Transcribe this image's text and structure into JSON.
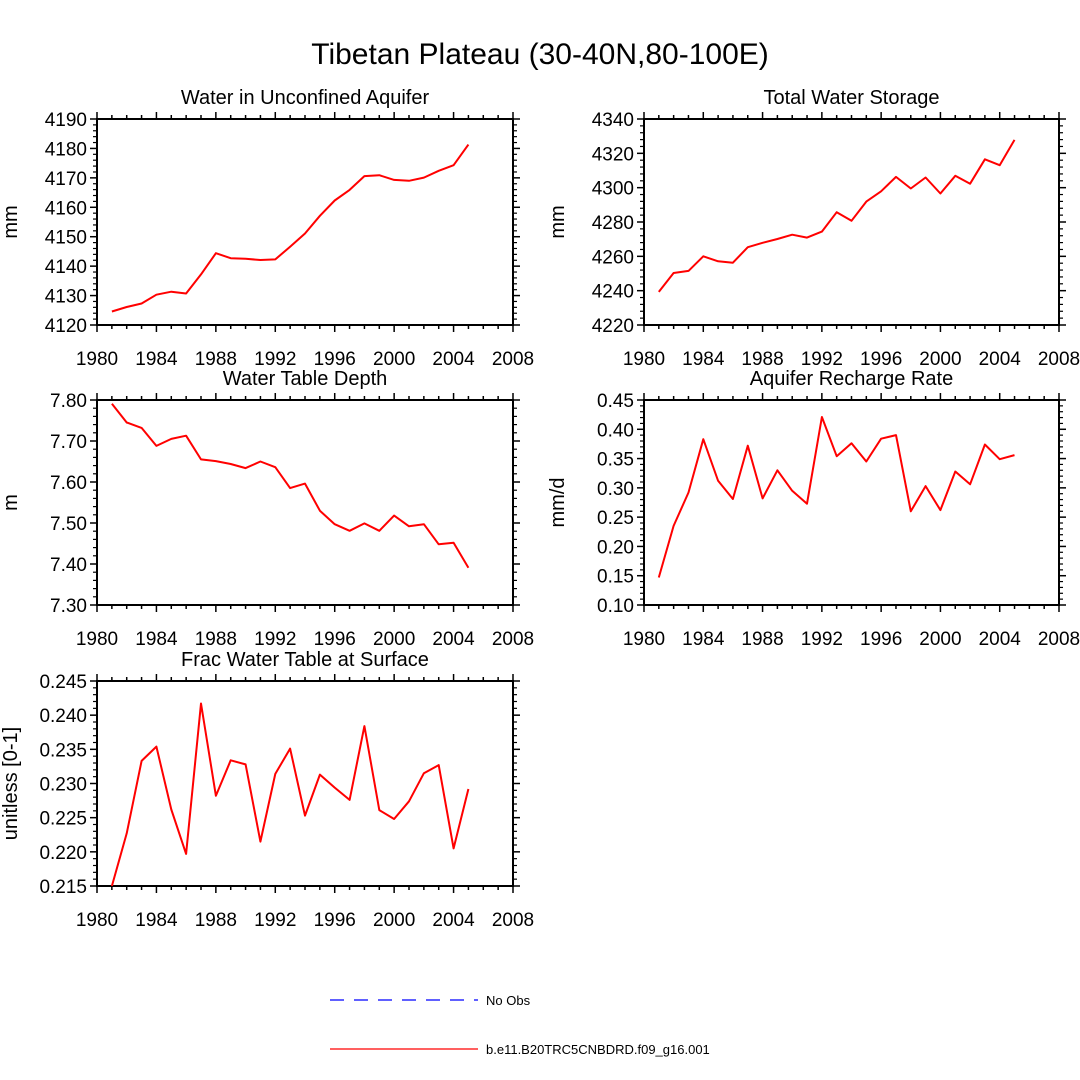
{
  "figure": {
    "title": "Tibetan Plateau (30-40N,80-100E)"
  },
  "legend": {
    "entries": [
      {
        "label": "No Obs",
        "color": "#0000ff",
        "style": "dashed"
      },
      {
        "label": "b.e11.B20TRC5CNBDRD.f09_g16.001",
        "color": "#ff0000",
        "style": "solid"
      }
    ]
  },
  "chart_data": [
    {
      "type": "line",
      "title": "Water in Unconfined Aquifer",
      "xlabel": "",
      "ylabel": "mm",
      "xlim": [
        1980,
        2008
      ],
      "ylim": [
        4120,
        4190
      ],
      "xticks": [
        1980,
        1984,
        1988,
        1992,
        1996,
        2000,
        2004,
        2008
      ],
      "yticks": [
        4120,
        4130,
        4140,
        4150,
        4160,
        4170,
        4180,
        4190
      ],
      "ytick_labels": [
        "4120",
        "4130",
        "4140",
        "4150",
        "4160",
        "4170",
        "4180",
        "4190"
      ],
      "x": [
        1981,
        1982,
        1983,
        1984,
        1985,
        1986,
        1987,
        1988,
        1989,
        1990,
        1991,
        1992,
        1993,
        1994,
        1995,
        1996,
        1997,
        1998,
        1999,
        2000,
        2001,
        2002,
        2003,
        2004,
        2005
      ],
      "series": [
        {
          "name": "b.e11.B20TRC5CNBDRD.f09_g16.001",
          "color": "#ff0000",
          "values": [
            4124.6,
            4126.1,
            4127.3,
            4130.3,
            4131.3,
            4130.7,
            4137.2,
            4144.4,
            4142.7,
            4142.5,
            4142.1,
            4142.3,
            4146.6,
            4151.1,
            4157.1,
            4162.3,
            4165.9,
            4170.6,
            4170.9,
            4169.3,
            4169.0,
            4170.1,
            4172.4,
            4174.3,
            4181.3
          ]
        }
      ]
    },
    {
      "type": "line",
      "title": "Total Water Storage",
      "xlabel": "",
      "ylabel": "mm",
      "xlim": [
        1980,
        2008
      ],
      "ylim": [
        4220,
        4340
      ],
      "xticks": [
        1980,
        1984,
        1988,
        1992,
        1996,
        2000,
        2004,
        2008
      ],
      "yticks": [
        4220,
        4240,
        4260,
        4280,
        4300,
        4320,
        4340
      ],
      "ytick_labels": [
        "4220",
        "4240",
        "4260",
        "4280",
        "4300",
        "4320",
        "4340"
      ],
      "x": [
        1981,
        1982,
        1983,
        1984,
        1985,
        1986,
        1987,
        1988,
        1989,
        1990,
        1991,
        1992,
        1993,
        1994,
        1995,
        1996,
        1997,
        1998,
        1999,
        2000,
        2001,
        2002,
        2003,
        2004,
        2005
      ],
      "series": [
        {
          "name": "b.e11.B20TRC5CNBDRD.f09_g16.001",
          "color": "#ff0000",
          "values": [
            4239.3,
            4250.3,
            4251.5,
            4260.0,
            4257.1,
            4256.3,
            4265.3,
            4267.9,
            4270.1,
            4272.6,
            4270.9,
            4274.4,
            4285.7,
            4280.7,
            4291.9,
            4297.9,
            4306.3,
            4299.5,
            4305.9,
            4296.6,
            4306.9,
            4302.3,
            4316.5,
            4313.1,
            4327.8
          ]
        }
      ]
    },
    {
      "type": "line",
      "title": "Water Table Depth",
      "xlabel": "",
      "ylabel": "m",
      "xlim": [
        1980,
        2008
      ],
      "ylim": [
        7.3,
        7.8
      ],
      "xticks": [
        1980,
        1984,
        1988,
        1992,
        1996,
        2000,
        2004,
        2008
      ],
      "yticks": [
        7.3,
        7.4,
        7.5,
        7.6,
        7.7,
        7.8
      ],
      "ytick_labels": [
        "7.30",
        "7.40",
        "7.50",
        "7.60",
        "7.70",
        "7.80"
      ],
      "x": [
        1981,
        1982,
        1983,
        1984,
        1985,
        1986,
        1987,
        1988,
        1989,
        1990,
        1991,
        1992,
        1993,
        1994,
        1995,
        1996,
        1997,
        1998,
        1999,
        2000,
        2001,
        2002,
        2003,
        2004,
        2005
      ],
      "series": [
        {
          "name": "b.e11.B20TRC5CNBDRD.f09_g16.001",
          "color": "#ff0000",
          "values": [
            7.791,
            7.745,
            7.732,
            7.688,
            7.705,
            7.713,
            7.655,
            7.651,
            7.644,
            7.634,
            7.65,
            7.636,
            7.585,
            7.596,
            7.53,
            7.497,
            7.481,
            7.499,
            7.481,
            7.518,
            7.492,
            7.497,
            7.448,
            7.452,
            7.391
          ]
        }
      ]
    },
    {
      "type": "line",
      "title": "Aquifer Recharge Rate",
      "xlabel": "",
      "ylabel": "mm/d",
      "xlim": [
        1980,
        2008
      ],
      "ylim": [
        0.1,
        0.45
      ],
      "xticks": [
        1980,
        1984,
        1988,
        1992,
        1996,
        2000,
        2004,
        2008
      ],
      "yticks": [
        0.1,
        0.15,
        0.2,
        0.25,
        0.3,
        0.35,
        0.4,
        0.45
      ],
      "ytick_labels": [
        "0.10",
        "0.15",
        "0.20",
        "0.25",
        "0.30",
        "0.35",
        "0.40",
        "0.45"
      ],
      "x": [
        1981,
        1982,
        1983,
        1984,
        1985,
        1986,
        1987,
        1988,
        1989,
        1990,
        1991,
        1992,
        1993,
        1994,
        1995,
        1996,
        1997,
        1998,
        1999,
        2000,
        2001,
        2002,
        2003,
        2004,
        2005
      ],
      "series": [
        {
          "name": "b.e11.B20TRC5CNBDRD.f09_g16.001",
          "color": "#ff0000",
          "values": [
            0.147,
            0.235,
            0.292,
            0.383,
            0.312,
            0.281,
            0.372,
            0.282,
            0.33,
            0.295,
            0.273,
            0.421,
            0.354,
            0.376,
            0.345,
            0.384,
            0.39,
            0.26,
            0.303,
            0.262,
            0.328,
            0.306,
            0.374,
            0.349,
            0.356
          ]
        }
      ]
    },
    {
      "type": "line",
      "title": "Frac Water Table at Surface",
      "xlabel": "",
      "ylabel": "unitless [0-1]",
      "xlim": [
        1980,
        2008
      ],
      "ylim": [
        0.215,
        0.245
      ],
      "xticks": [
        1980,
        1984,
        1988,
        1992,
        1996,
        2000,
        2004,
        2008
      ],
      "yticks": [
        0.215,
        0.22,
        0.225,
        0.23,
        0.235,
        0.24,
        0.245
      ],
      "ytick_labels": [
        "0.215",
        "0.220",
        "0.225",
        "0.230",
        "0.235",
        "0.240",
        "0.245"
      ],
      "x": [
        1981,
        1982,
        1983,
        1984,
        1985,
        1986,
        1987,
        1988,
        1989,
        1990,
        1991,
        1992,
        1993,
        1994,
        1995,
        1996,
        1997,
        1998,
        1999,
        2000,
        2001,
        2002,
        2003,
        2004,
        2005
      ],
      "series": [
        {
          "name": "b.e11.B20TRC5CNBDRD.f09_g16.001",
          "color": "#ff0000",
          "values": [
            0.215,
            0.2227,
            0.2333,
            0.2354,
            0.2262,
            0.2197,
            0.2417,
            0.2282,
            0.2334,
            0.2328,
            0.2215,
            0.2314,
            0.2351,
            0.2253,
            0.2313,
            0.2294,
            0.2276,
            0.2384,
            0.2261,
            0.2248,
            0.2274,
            0.2315,
            0.2327,
            0.2205,
            0.2292
          ]
        }
      ]
    }
  ]
}
